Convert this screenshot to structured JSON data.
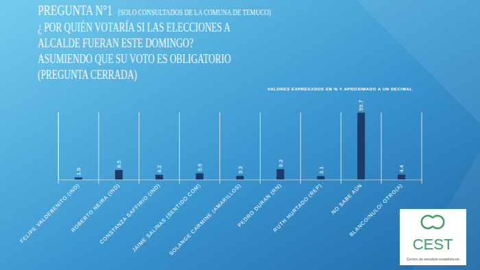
{
  "chart_data": {
    "type": "bar",
    "title": "PREGUNTA N°1",
    "subtitle": "(SOLO CONSULTADOS DE LA COMUNA DE TEMUCO)",
    "question": [
      "¿ POR QUIÉN VOTARÍA SI LAS ELECCIONES A",
      "ALCALDE FUERAN ESTE DOMINGO?",
      "ASUMIENDO QUE SU VOTO ES OBLIGATORIO",
      "(PREGUNTA CERRADA)"
    ],
    "note": "VALORES EXPRESADOS EN % Y APROXIMADO A UN DECIMAL",
    "logo": [
      "CEST",
      "Centro de estudios estadísticos"
    ],
    "categories": [
      "FELIPE VALDEBENITO (IND)",
      "ROBERTO NEIRA (IND)",
      "CONSTANZA SAFFIRIO (IND)",
      "JAIME SALINAS (SENTIDO COM)",
      "SOLANGE CARMINE (AMARILLOS)",
      "PEDRO DURAN (RN)",
      "RUTH HURTADO (REP)",
      "NO SABE AÚN",
      "BLANCO/NULO/ OTRO(A)"
    ],
    "values": [
      1.9,
      8.5,
      4.2,
      5.6,
      3.3,
      9.3,
      3.1,
      59.7,
      4.4
    ],
    "color": "#1f3a68",
    "ylim": [
      0,
      60
    ],
    "grid": false,
    "data_labels": true,
    "tick_labels": "x"
  }
}
